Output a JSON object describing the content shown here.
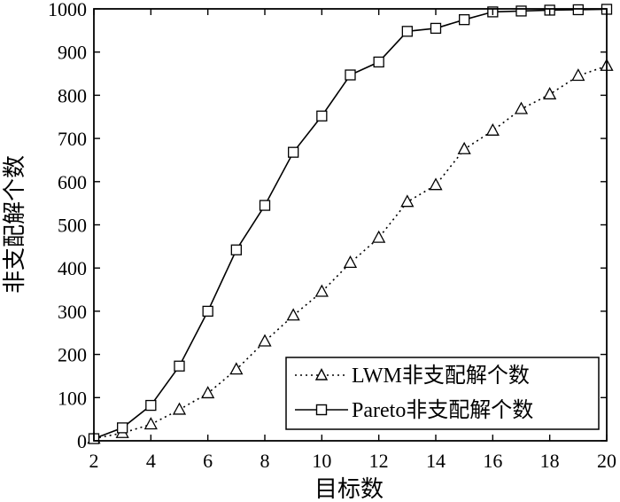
{
  "chart_data": {
    "type": "line",
    "title": "",
    "xlabel": "目标数",
    "ylabel": "非支配解个数",
    "xlim": [
      2,
      20
    ],
    "ylim": [
      0,
      1000
    ],
    "xticks": [
      "2",
      "4",
      "6",
      "8",
      "10",
      "12",
      "14",
      "16",
      "18",
      "20"
    ],
    "yticks": [
      "0",
      "100",
      "200",
      "300",
      "400",
      "500",
      "600",
      "700",
      "800",
      "900",
      "1000"
    ],
    "grid": false,
    "legend_position": "bottom-right",
    "x": [
      2,
      3,
      4,
      5,
      6,
      7,
      8,
      9,
      10,
      11,
      12,
      13,
      14,
      15,
      16,
      17,
      18,
      19,
      20
    ],
    "series": [
      {
        "name": "LWM非支配解个数",
        "marker": "triangle",
        "line_style": "dotted",
        "values": [
          5,
          18,
          38,
          72,
          110,
          165,
          230,
          290,
          345,
          412,
          470,
          553,
          592,
          675,
          718,
          768,
          802,
          845,
          868
        ]
      },
      {
        "name": "Pareto非支配解个数",
        "marker": "square",
        "line_style": "solid",
        "values": [
          5,
          30,
          82,
          173,
          300,
          442,
          545,
          668,
          752,
          847,
          877,
          948,
          955,
          975,
          993,
          995,
          997,
          998,
          999
        ]
      }
    ]
  }
}
